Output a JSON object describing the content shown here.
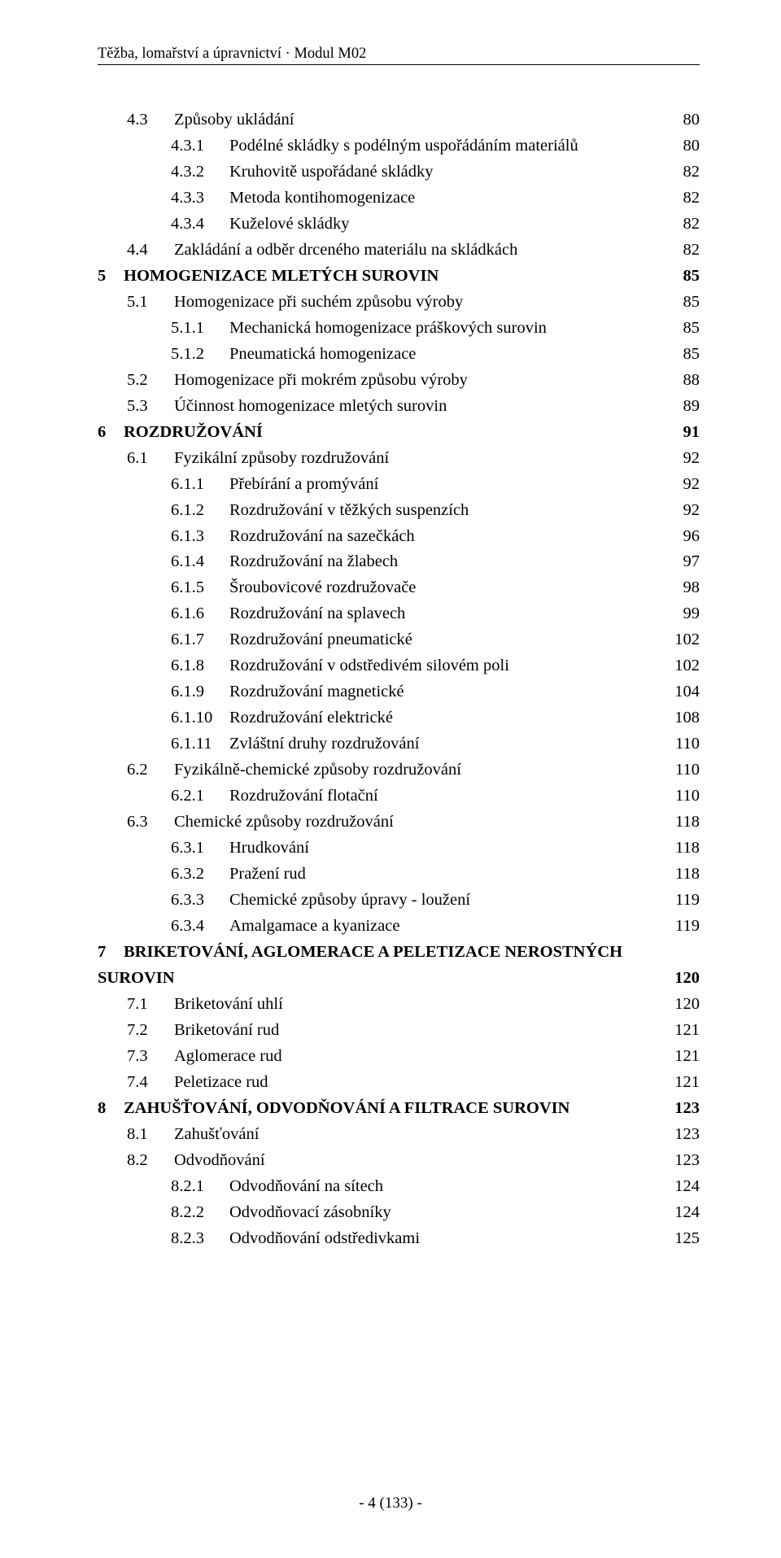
{
  "header": "Těžba, lomařství a úpravnictví · Modul M02",
  "footer": "- 4 (133) -",
  "font": {
    "family": "Times New Roman",
    "body_size_pt": 15,
    "header_size_pt": 14
  },
  "colors": {
    "text": "#000000",
    "background": "#ffffff",
    "rule": "#000000"
  },
  "toc": [
    {
      "level": 1,
      "num": "4.3",
      "title": "Způsoby ukládání",
      "page": "80",
      "bold": false
    },
    {
      "level": 2,
      "num": "4.3.1",
      "title": "Podélné skládky s podélným uspořádáním materiálů",
      "page": "80",
      "bold": false
    },
    {
      "level": 2,
      "num": "4.3.2",
      "title": "Kruhovitě uspořádané skládky",
      "page": "82",
      "bold": false
    },
    {
      "level": 2,
      "num": "4.3.3",
      "title": "Metoda kontihomogenizace",
      "page": "82",
      "bold": false
    },
    {
      "level": 2,
      "num": "4.3.4",
      "title": "Kuželové skládky",
      "page": "82",
      "bold": false
    },
    {
      "level": 1,
      "num": "4.4",
      "title": "Zakládání a odběr drceného materiálu na skládkách",
      "page": "82",
      "bold": false
    },
    {
      "level": 0,
      "num": "5",
      "title": "HOMOGENIZACE MLETÝCH SUROVIN",
      "page": "85",
      "bold": true
    },
    {
      "level": 1,
      "num": "5.1",
      "title": "Homogenizace při suchém způsobu výroby",
      "page": "85",
      "bold": false
    },
    {
      "level": 2,
      "num": "5.1.1",
      "title": "Mechanická homogenizace práškových surovin",
      "page": "85",
      "bold": false
    },
    {
      "level": 2,
      "num": "5.1.2",
      "title": "Pneumatická homogenizace",
      "page": "85",
      "bold": false
    },
    {
      "level": 1,
      "num": "5.2",
      "title": "Homogenizace při mokrém způsobu výroby",
      "page": "88",
      "bold": false
    },
    {
      "level": 1,
      "num": "5.3",
      "title": "Účinnost homogenizace mletých surovin",
      "page": "89",
      "bold": false
    },
    {
      "level": 0,
      "num": "6",
      "title": "ROZDRUŽOVÁNÍ",
      "page": "91",
      "bold": true
    },
    {
      "level": 1,
      "num": "6.1",
      "title": "Fyzikální způsoby rozdružování",
      "page": "92",
      "bold": false
    },
    {
      "level": 2,
      "num": "6.1.1",
      "title": "Přebírání a promývání",
      "page": "92",
      "bold": false
    },
    {
      "level": 2,
      "num": "6.1.2",
      "title": "Rozdružování v těžkých suspenzích",
      "page": "92",
      "bold": false
    },
    {
      "level": 2,
      "num": "6.1.3",
      "title": "Rozdružování na sazečkách",
      "page": "96",
      "bold": false
    },
    {
      "level": 2,
      "num": "6.1.4",
      "title": "Rozdružování na žlabech",
      "page": "97",
      "bold": false
    },
    {
      "level": 2,
      "num": "6.1.5",
      "title": "Šroubovicové rozdružovače",
      "page": "98",
      "bold": false
    },
    {
      "level": 2,
      "num": "6.1.6",
      "title": "Rozdružování na splavech",
      "page": "99",
      "bold": false
    },
    {
      "level": 2,
      "num": "6.1.7",
      "title": "Rozdružování pneumatické",
      "page": "102",
      "bold": false
    },
    {
      "level": 2,
      "num": "6.1.8",
      "title": "Rozdružování v odstředivém silovém poli",
      "page": "102",
      "bold": false
    },
    {
      "level": 2,
      "num": "6.1.9",
      "title": "Rozdružování magnetické",
      "page": "104",
      "bold": false
    },
    {
      "level": 2,
      "num": "6.1.10",
      "title": "Rozdružování elektrické",
      "page": "108",
      "bold": false
    },
    {
      "level": 2,
      "num": "6.1.11",
      "title": "Zvláštní druhy rozdružování",
      "page": "110",
      "bold": false
    },
    {
      "level": 1,
      "num": "6.2",
      "title": "Fyzikálně-chemické způsoby rozdružování",
      "page": "110",
      "bold": false
    },
    {
      "level": 2,
      "num": "6.2.1",
      "title": "Rozdružování flotační",
      "page": "110",
      "bold": false
    },
    {
      "level": 1,
      "num": "6.3",
      "title": "Chemické způsoby rozdružování",
      "page": "118",
      "bold": false
    },
    {
      "level": 2,
      "num": "6.3.1",
      "title": "Hrudkování",
      "page": "118",
      "bold": false
    },
    {
      "level": 2,
      "num": "6.3.2",
      "title": "Pražení rud",
      "page": "118",
      "bold": false
    },
    {
      "level": 2,
      "num": "6.3.3",
      "title": "Chemické způsoby úpravy - loužení",
      "page": "119",
      "bold": false
    },
    {
      "level": 2,
      "num": "6.3.4",
      "title": "Amalgamace a kyanizace",
      "page": "119",
      "bold": false
    },
    {
      "level": 0,
      "num": "7",
      "title": "BRIKETOVÁNÍ, AGLOMERACE A PELETIZACE NEROSTNÝCH",
      "title2": "SUROVIN",
      "page": "120",
      "bold": true,
      "wrap": true
    },
    {
      "level": 1,
      "num": "7.1",
      "title": "Briketování uhlí",
      "page": "120",
      "bold": false
    },
    {
      "level": 1,
      "num": "7.2",
      "title": "Briketování rud",
      "page": "121",
      "bold": false
    },
    {
      "level": 1,
      "num": "7.3",
      "title": "Aglomerace rud",
      "page": "121",
      "bold": false
    },
    {
      "level": 1,
      "num": "7.4",
      "title": "Peletizace rud",
      "page": "121",
      "bold": false
    },
    {
      "level": 0,
      "num": "8",
      "title": "ZAHUŠŤOVÁNÍ, ODVODŇOVÁNÍ A FILTRACE SUROVIN",
      "page": "123",
      "bold": true
    },
    {
      "level": 1,
      "num": "8.1",
      "title": "Zahušťování",
      "page": "123",
      "bold": false
    },
    {
      "level": 1,
      "num": "8.2",
      "title": "Odvodňování",
      "page": "123",
      "bold": false
    },
    {
      "level": 2,
      "num": "8.2.1",
      "title": "Odvodňování na sítech",
      "page": "124",
      "bold": false
    },
    {
      "level": 2,
      "num": "8.2.2",
      "title": "Odvodňovací zásobníky",
      "page": "124",
      "bold": false
    },
    {
      "level": 2,
      "num": "8.2.3",
      "title": "Odvodňování odstředivkami",
      "page": "125",
      "bold": false
    }
  ]
}
